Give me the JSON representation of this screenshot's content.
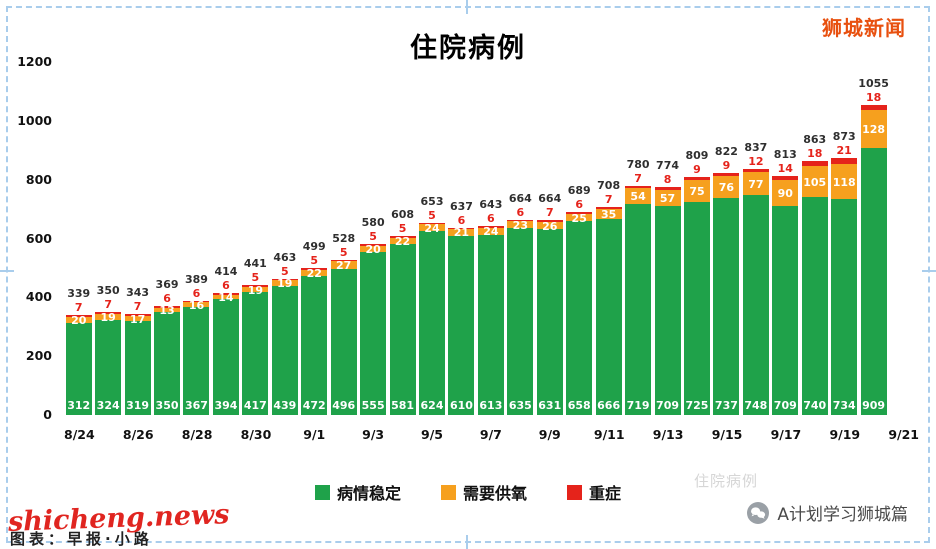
{
  "page": {
    "brand": "狮城新闻",
    "watermark_red": "shicheng.news",
    "source_credit": "图表：早报·小路",
    "footer_right": "A计划学习狮城篇",
    "faint_watermark": "住院病例"
  },
  "chart_data": {
    "type": "bar",
    "stacked": true,
    "title": "住院病例",
    "categories": [
      "8/24",
      "8/25",
      "8/26",
      "8/27",
      "8/28",
      "8/29",
      "8/30",
      "8/31",
      "9/1",
      "9/2",
      "9/3",
      "9/4",
      "9/5",
      "9/6",
      "9/7",
      "9/8",
      "9/9",
      "9/10",
      "9/11",
      "9/12",
      "9/13",
      "9/14",
      "9/15",
      "9/16",
      "9/17",
      "9/18",
      "9/19",
      "9/20"
    ],
    "x_tick_labels": [
      "8/24",
      "8/26",
      "8/28",
      "8/30",
      "9/1",
      "9/3",
      "9/5",
      "9/7",
      "9/9",
      "9/11",
      "9/13",
      "9/15",
      "9/17",
      "9/19",
      "9/21"
    ],
    "x_tick_step": 2,
    "series": [
      {
        "name": "病情稳定",
        "color": "#1fa24a",
        "values": [
          312,
          324,
          319,
          350,
          367,
          394,
          417,
          439,
          472,
          496,
          555,
          581,
          624,
          610,
          613,
          635,
          631,
          658,
          666,
          719,
          709,
          725,
          737,
          748,
          709,
          740,
          734,
          909
        ]
      },
      {
        "name": "需要供氧",
        "color": "#f6a01e",
        "values": [
          20,
          19,
          17,
          13,
          16,
          14,
          19,
          19,
          22,
          27,
          20,
          22,
          24,
          21,
          24,
          23,
          26,
          25,
          35,
          54,
          57,
          75,
          76,
          77,
          90,
          105,
          118,
          128
        ]
      },
      {
        "name": "重症",
        "color": "#e5231b",
        "values": [
          7,
          7,
          7,
          6,
          6,
          6,
          5,
          5,
          5,
          5,
          5,
          5,
          5,
          6,
          6,
          6,
          7,
          6,
          7,
          7,
          8,
          9,
          9,
          12,
          14,
          18,
          21,
          18
        ]
      }
    ],
    "totals": [
      339,
      350,
      343,
      369,
      389,
      414,
      441,
      463,
      499,
      528,
      580,
      608,
      653,
      637,
      643,
      664,
      664,
      689,
      708,
      780,
      774,
      809,
      822,
      837,
      813,
      863,
      873,
      1055
    ],
    "ylim": [
      0,
      1200
    ],
    "yticks": [
      0,
      200,
      400,
      600,
      800,
      1000,
      1200
    ],
    "grid": false,
    "legend_position": "bottom"
  }
}
